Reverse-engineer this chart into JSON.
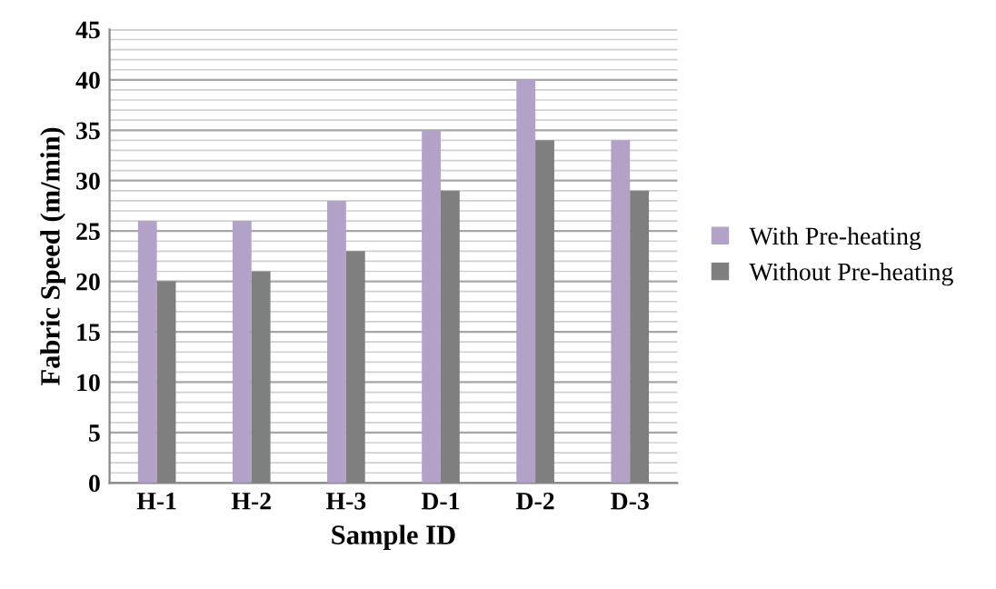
{
  "chart_data": {
    "type": "bar",
    "xlabel": "Sample ID",
    "ylabel": "Fabric Speed (m/min)",
    "categories": [
      "H-1",
      "H-2",
      "H-3",
      "D-1",
      "D-2",
      "D-3"
    ],
    "series": [
      {
        "name": "With Pre-heating",
        "color": "#b3a2c7",
        "values": [
          26,
          26,
          28,
          35,
          40,
          34
        ]
      },
      {
        "name": "Without Pre-heating",
        "color": "#7f7f7f",
        "values": [
          20,
          21,
          23,
          29,
          34,
          29
        ]
      }
    ],
    "ylim": [
      0,
      45
    ],
    "yticks": [
      0,
      5,
      10,
      15,
      20,
      25,
      30,
      35,
      40,
      45
    ],
    "grid": "y",
    "legend": "right"
  }
}
